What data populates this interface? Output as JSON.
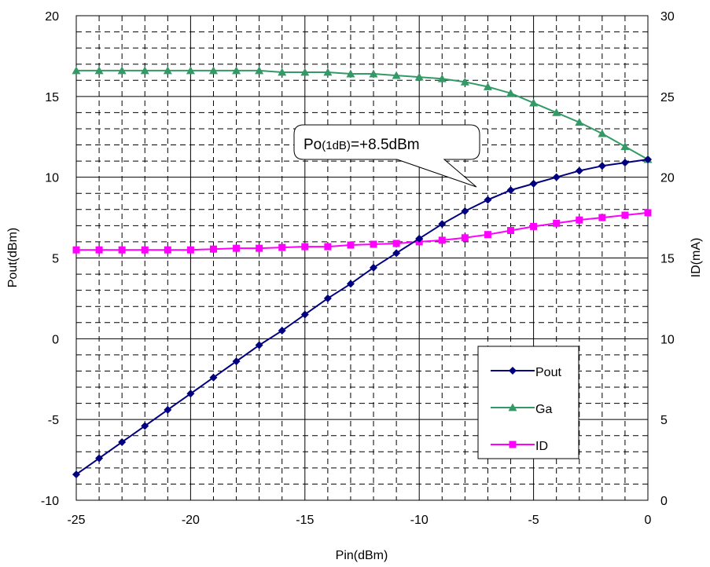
{
  "chart_data": {
    "type": "line",
    "xlabel": "Pin(dBm)",
    "ylabel_left": "Pout(dBm)",
    "ylabel_right": "ID(mA)",
    "xlim": [
      -25,
      0
    ],
    "ylim_left": [
      -10,
      20
    ],
    "ylim_right": [
      0,
      30
    ],
    "x_ticks": [
      "-25",
      "-20",
      "-15",
      "-10",
      "-5",
      "0"
    ],
    "y_left_ticks": [
      "-10",
      "-5",
      "0",
      "5",
      "10",
      "15",
      "20"
    ],
    "y_right_ticks": [
      "0",
      "5",
      "10",
      "15",
      "20",
      "25",
      "30"
    ],
    "grid": true,
    "legend_position": "bottom-right",
    "x": [
      -25,
      -24,
      -23,
      -22,
      -21,
      -20,
      -19,
      -18,
      -17,
      -16,
      -15,
      -14,
      -13,
      -12,
      -11,
      -10,
      -9,
      -8,
      -7,
      -6,
      -5,
      -4,
      -3,
      -2,
      -1,
      0
    ],
    "series": [
      {
        "name": "Pout",
        "axis": "left",
        "color": "#000080",
        "marker": "diamond",
        "values": [
          -8.4,
          -7.4,
          -6.4,
          -5.4,
          -4.4,
          -3.4,
          -2.4,
          -1.4,
          -0.4,
          0.5,
          1.5,
          2.5,
          3.4,
          4.4,
          5.3,
          6.2,
          7.1,
          7.9,
          8.6,
          9.2,
          9.6,
          10.0,
          10.4,
          10.7,
          10.9,
          11.1
        ]
      },
      {
        "name": "Ga",
        "axis": "left",
        "color": "#339966",
        "marker": "triangle",
        "values": [
          16.6,
          16.6,
          16.6,
          16.6,
          16.6,
          16.6,
          16.6,
          16.6,
          16.6,
          16.5,
          16.5,
          16.5,
          16.4,
          16.4,
          16.3,
          16.2,
          16.1,
          15.9,
          15.6,
          15.2,
          14.6,
          14.0,
          13.4,
          12.7,
          11.9,
          11.1
        ]
      },
      {
        "name": "ID",
        "axis": "right",
        "color": "#ff00ff",
        "marker": "square",
        "values": [
          15.5,
          15.5,
          15.5,
          15.5,
          15.5,
          15.5,
          15.55,
          15.6,
          15.6,
          15.65,
          15.7,
          15.7,
          15.8,
          15.85,
          15.9,
          16.0,
          16.1,
          16.25,
          16.45,
          16.7,
          16.95,
          17.15,
          17.35,
          17.5,
          17.65,
          17.8
        ]
      }
    ],
    "annotation": {
      "prefix": "Po",
      "subscript": "(1dB)",
      "suffix": "=+8.5dBm",
      "pointer_x": -7.5,
      "pointer_y": 9.4
    }
  }
}
